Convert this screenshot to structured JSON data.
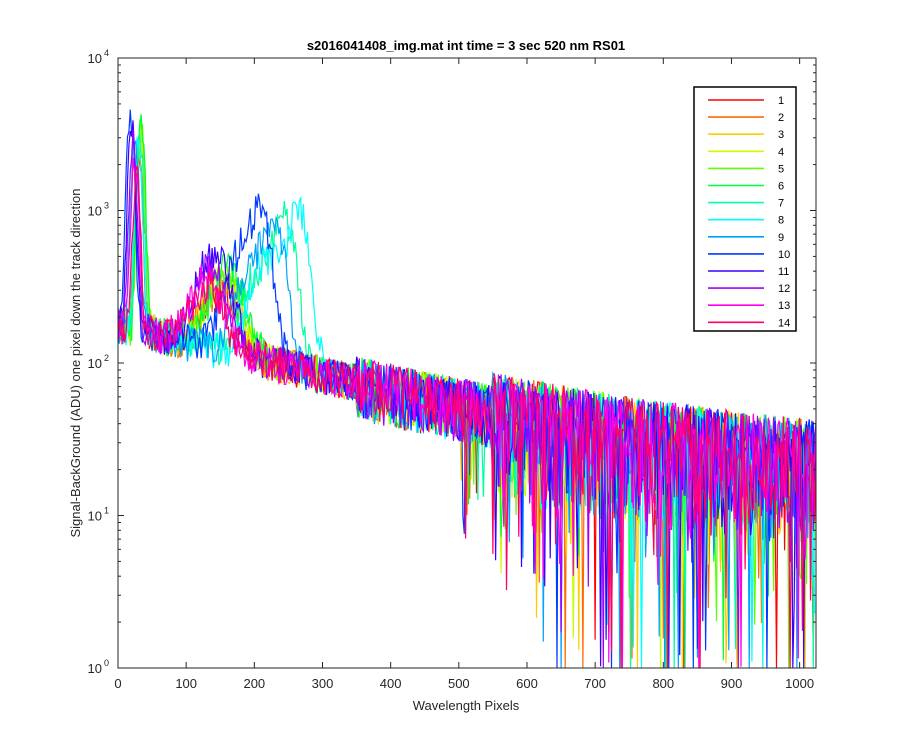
{
  "chart_data": {
    "type": "line",
    "title": "s2016041408_img.mat int time = 3 sec  520 nm RS01",
    "xlabel": "Wavelength Pixels",
    "ylabel": "Signal-BackGround (ADU) one pixel down the track direction",
    "xlim": [
      0,
      1024
    ],
    "ylim": [
      1,
      10000
    ],
    "yscale": "log",
    "grid": false,
    "legend_position": "top-right",
    "x_ticks": [
      0,
      100,
      200,
      300,
      400,
      500,
      600,
      700,
      800,
      900,
      1000
    ],
    "x_tick_labels": [
      "0",
      "100",
      "200",
      "300",
      "400",
      "500",
      "600",
      "700",
      "800",
      "900",
      "1000"
    ],
    "y_ticks": [
      1,
      10,
      100,
      1000,
      10000
    ],
    "y_tick_labels": [
      {
        "base": "10",
        "exp": "0"
      },
      {
        "base": "10",
        "exp": "1"
      },
      {
        "base": "10",
        "exp": "2"
      },
      {
        "base": "10",
        "exp": "3"
      },
      {
        "base": "10",
        "exp": "4"
      }
    ],
    "series": [
      {
        "name": "1",
        "color": "#ff0000",
        "peak_x": 30,
        "peak": 2000,
        "hump_x": 150,
        "hump": 310,
        "bump_x": 0,
        "bump": 0
      },
      {
        "name": "2",
        "color": "#ff6a00",
        "peak_x": 32,
        "peak": 2300,
        "hump_x": 150,
        "hump": 360,
        "bump_x": 0,
        "bump": 0
      },
      {
        "name": "3",
        "color": "#ffcc00",
        "peak_x": 33,
        "peak": 2700,
        "hump_x": 152,
        "hump": 420,
        "bump_x": 0,
        "bump": 0
      },
      {
        "name": "4",
        "color": "#c8ff00",
        "peak_x": 33,
        "peak": 3100,
        "hump_x": 155,
        "hump": 480,
        "bump_x": 0,
        "bump": 0
      },
      {
        "name": "5",
        "color": "#5eff00",
        "peak_x": 34,
        "peak": 3500,
        "hump_x": 158,
        "hump": 520,
        "bump_x": 0,
        "bump": 0
      },
      {
        "name": "6",
        "color": "#00ff3a",
        "peak_x": 34,
        "peak": 3600,
        "hump_x": 160,
        "hump": 560,
        "bump_x": 0,
        "bump": 0
      },
      {
        "name": "7",
        "color": "#00ffa0",
        "peak_x": 32,
        "peak": 3000,
        "hump_x": 210,
        "hump": 600,
        "bump_x": 245,
        "bump": 1100
      },
      {
        "name": "8",
        "color": "#00ffff",
        "peak_x": 30,
        "peak": 2500,
        "hump_x": 220,
        "hump": 700,
        "bump_x": 265,
        "bump": 1300
      },
      {
        "name": "9",
        "color": "#00a0ff",
        "peak_x": 25,
        "peak": 3200,
        "hump_x": 200,
        "hump": 650,
        "bump_x": 230,
        "bump": 900
      },
      {
        "name": "10",
        "color": "#003aff",
        "peak_x": 18,
        "peak": 4000,
        "hump_x": 185,
        "hump": 850,
        "bump_x": 210,
        "bump": 950
      },
      {
        "name": "11",
        "color": "#3a00ff",
        "peak_x": 20,
        "peak": 3300,
        "hump_x": 140,
        "hump": 700,
        "bump_x": 0,
        "bump": 0
      },
      {
        "name": "12",
        "color": "#a000ff",
        "peak_x": 22,
        "peak": 2500,
        "hump_x": 135,
        "hump": 520,
        "bump_x": 0,
        "bump": 0
      },
      {
        "name": "13",
        "color": "#ff00e6",
        "peak_x": 25,
        "peak": 2000,
        "hump_x": 130,
        "hump": 420,
        "bump_x": 0,
        "bump": 0
      },
      {
        "name": "14",
        "color": "#ff0066",
        "peak_x": 27,
        "peak": 1700,
        "hump_x": 130,
        "hump": 350,
        "bump_x": 0,
        "bump": 0
      }
    ]
  }
}
